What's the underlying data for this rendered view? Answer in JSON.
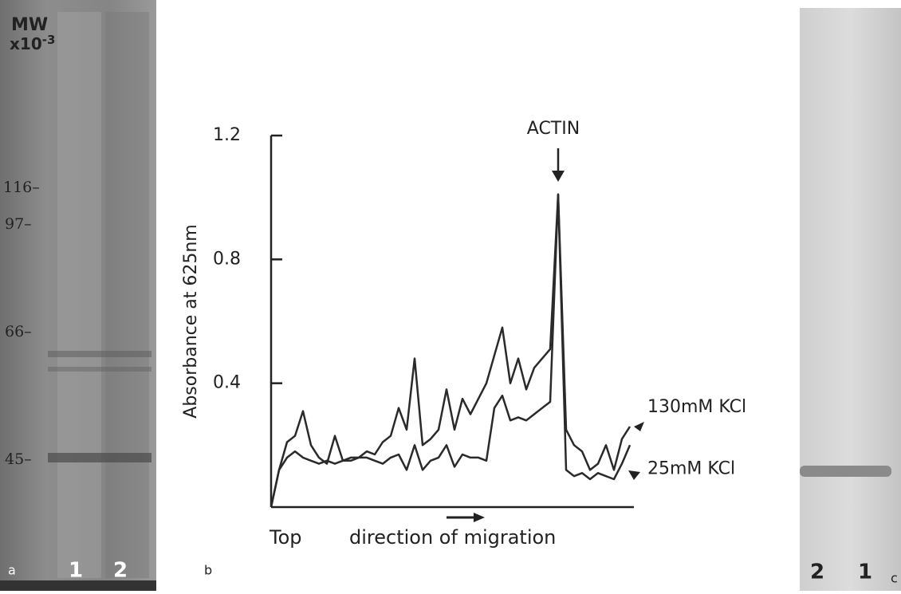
{
  "chart_data": {
    "type": "line",
    "y_label": "Absorbance at 625nm",
    "ylim": [
      0,
      1.2
    ],
    "yticks": [
      0.4,
      0.8,
      1.2
    ],
    "x_start_label": "Top",
    "x_label": "direction of migration",
    "annotation": "ACTIN",
    "series": [
      {
        "name": "130mM KCl",
        "color": "#2a2a2a",
        "values": [
          0.0,
          0.12,
          0.21,
          0.23,
          0.31,
          0.2,
          0.16,
          0.14,
          0.23,
          0.15,
          0.16,
          0.16,
          0.18,
          0.17,
          0.21,
          0.23,
          0.32,
          0.25,
          0.48,
          0.2,
          0.22,
          0.25,
          0.38,
          0.25,
          0.35,
          0.3,
          0.35,
          0.4,
          0.49,
          0.58,
          0.4,
          0.48,
          0.38,
          0.45,
          0.48,
          0.51,
          1.01,
          0.25,
          0.2,
          0.18,
          0.12,
          0.14,
          0.2,
          0.12,
          0.22,
          0.26
        ]
      },
      {
        "name": "25mM KCl",
        "color": "#2a2a2a",
        "values": [
          0.0,
          0.12,
          0.16,
          0.18,
          0.16,
          0.15,
          0.14,
          0.15,
          0.14,
          0.15,
          0.15,
          0.16,
          0.16,
          0.15,
          0.14,
          0.16,
          0.17,
          0.12,
          0.2,
          0.12,
          0.15,
          0.16,
          0.2,
          0.13,
          0.17,
          0.16,
          0.16,
          0.15,
          0.32,
          0.36,
          0.28,
          0.29,
          0.28,
          0.3,
          0.32,
          0.34,
          1.01,
          0.12,
          0.1,
          0.11,
          0.09,
          0.11,
          0.1,
          0.09,
          0.14,
          0.2
        ]
      }
    ]
  },
  "panel_a": {
    "letter": "a",
    "mw": "MW",
    "mw_unit": "x10",
    "mw_exponent": "-3",
    "markers": [
      "116–",
      "97–",
      "66–",
      "45–"
    ],
    "lanes": [
      "1",
      "2"
    ]
  },
  "panel_b": {
    "letter": "b"
  },
  "panel_c": {
    "letter": "c",
    "lanes": [
      "2",
      "1"
    ]
  }
}
